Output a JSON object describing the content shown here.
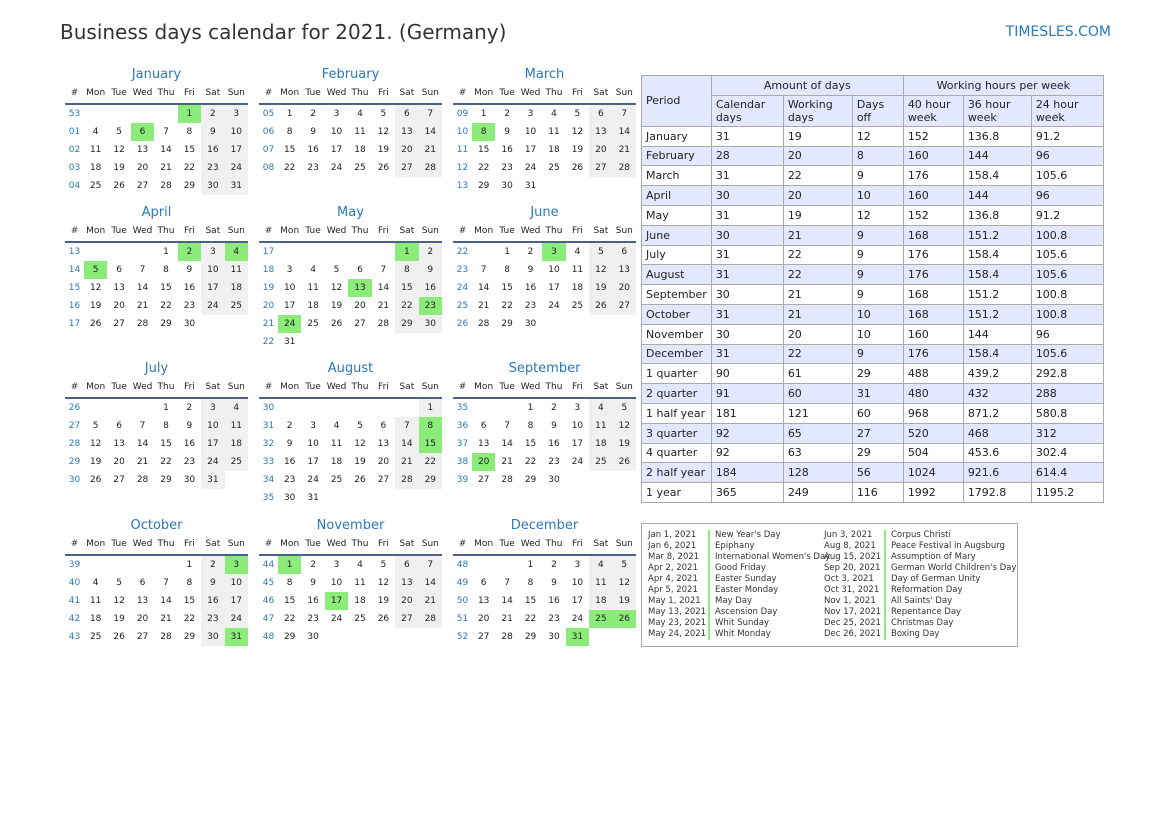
{
  "header": {
    "title": "Business days calendar for 2021. (Germany)",
    "brand": "TIMESLES.COM"
  },
  "week_header": [
    "#",
    "Mon",
    "Tue",
    "Wed",
    "Thu",
    "Fri",
    "Sat",
    "Sun"
  ],
  "colors": {
    "accent": "#2a79bd",
    "holiday": "#8bec7a",
    "weekend": "#f0f0f0",
    "table_header": "#e4e8ff"
  },
  "months": [
    {
      "name": "January",
      "rows": [
        {
          "wk": "53",
          "days": [
            "",
            "",
            "",
            "",
            "1",
            "2",
            "3"
          ]
        },
        {
          "wk": "01",
          "days": [
            "4",
            "5",
            "6",
            "7",
            "8",
            "9",
            "10"
          ]
        },
        {
          "wk": "02",
          "days": [
            "11",
            "12",
            "13",
            "14",
            "15",
            "16",
            "17"
          ]
        },
        {
          "wk": "03",
          "days": [
            "18",
            "19",
            "20",
            "21",
            "22",
            "23",
            "24"
          ]
        },
        {
          "wk": "04",
          "days": [
            "25",
            "26",
            "27",
            "28",
            "29",
            "30",
            "31"
          ]
        }
      ],
      "holidays": [
        "1",
        "6"
      ]
    },
    {
      "name": "February",
      "rows": [
        {
          "wk": "05",
          "days": [
            "1",
            "2",
            "3",
            "4",
            "5",
            "6",
            "7"
          ]
        },
        {
          "wk": "06",
          "days": [
            "8",
            "9",
            "10",
            "11",
            "12",
            "13",
            "14"
          ]
        },
        {
          "wk": "07",
          "days": [
            "15",
            "16",
            "17",
            "18",
            "19",
            "20",
            "21"
          ]
        },
        {
          "wk": "08",
          "days": [
            "22",
            "23",
            "24",
            "25",
            "26",
            "27",
            "28"
          ]
        }
      ],
      "holidays": []
    },
    {
      "name": "March",
      "rows": [
        {
          "wk": "09",
          "days": [
            "1",
            "2",
            "3",
            "4",
            "5",
            "6",
            "7"
          ]
        },
        {
          "wk": "10",
          "days": [
            "8",
            "9",
            "10",
            "11",
            "12",
            "13",
            "14"
          ]
        },
        {
          "wk": "11",
          "days": [
            "15",
            "16",
            "17",
            "18",
            "19",
            "20",
            "21"
          ]
        },
        {
          "wk": "12",
          "days": [
            "22",
            "23",
            "24",
            "25",
            "26",
            "27",
            "28"
          ]
        },
        {
          "wk": "13",
          "days": [
            "29",
            "30",
            "31",
            "",
            "",
            "",
            ""
          ]
        }
      ],
      "holidays": [
        "8"
      ]
    },
    {
      "name": "April",
      "rows": [
        {
          "wk": "13",
          "days": [
            "",
            "",
            "",
            "1",
            "2",
            "3",
            "4"
          ]
        },
        {
          "wk": "14",
          "days": [
            "5",
            "6",
            "7",
            "8",
            "9",
            "10",
            "11"
          ]
        },
        {
          "wk": "15",
          "days": [
            "12",
            "13",
            "14",
            "15",
            "16",
            "17",
            "18"
          ]
        },
        {
          "wk": "16",
          "days": [
            "19",
            "20",
            "21",
            "22",
            "23",
            "24",
            "25"
          ]
        },
        {
          "wk": "17",
          "days": [
            "26",
            "27",
            "28",
            "29",
            "30",
            "",
            ""
          ]
        }
      ],
      "holidays": [
        "2",
        "4",
        "5"
      ]
    },
    {
      "name": "May",
      "rows": [
        {
          "wk": "17",
          "days": [
            "",
            "",
            "",
            "",
            "",
            "1",
            "2"
          ]
        },
        {
          "wk": "18",
          "days": [
            "3",
            "4",
            "5",
            "6",
            "7",
            "8",
            "9"
          ]
        },
        {
          "wk": "19",
          "days": [
            "10",
            "11",
            "12",
            "13",
            "14",
            "15",
            "16"
          ]
        },
        {
          "wk": "20",
          "days": [
            "17",
            "18",
            "19",
            "20",
            "21",
            "22",
            "23"
          ]
        },
        {
          "wk": "21",
          "days": [
            "24",
            "25",
            "26",
            "27",
            "28",
            "29",
            "30"
          ]
        },
        {
          "wk": "22",
          "days": [
            "31",
            "",
            "",
            "",
            "",
            "",
            ""
          ]
        }
      ],
      "holidays": [
        "1",
        "13",
        "23",
        "24"
      ]
    },
    {
      "name": "June",
      "rows": [
        {
          "wk": "22",
          "days": [
            "",
            "1",
            "2",
            "3",
            "4",
            "5",
            "6"
          ]
        },
        {
          "wk": "23",
          "days": [
            "7",
            "8",
            "9",
            "10",
            "11",
            "12",
            "13"
          ]
        },
        {
          "wk": "24",
          "days": [
            "14",
            "15",
            "16",
            "17",
            "18",
            "19",
            "20"
          ]
        },
        {
          "wk": "25",
          "days": [
            "21",
            "22",
            "23",
            "24",
            "25",
            "26",
            "27"
          ]
        },
        {
          "wk": "26",
          "days": [
            "28",
            "29",
            "30",
            "",
            "",
            "",
            ""
          ]
        }
      ],
      "holidays": [
        "3"
      ]
    },
    {
      "name": "July",
      "rows": [
        {
          "wk": "26",
          "days": [
            "",
            "",
            "",
            "1",
            "2",
            "3",
            "4"
          ]
        },
        {
          "wk": "27",
          "days": [
            "5",
            "6",
            "7",
            "8",
            "9",
            "10",
            "11"
          ]
        },
        {
          "wk": "28",
          "days": [
            "12",
            "13",
            "14",
            "15",
            "16",
            "17",
            "18"
          ]
        },
        {
          "wk": "29",
          "days": [
            "19",
            "20",
            "21",
            "22",
            "23",
            "24",
            "25"
          ]
        },
        {
          "wk": "30",
          "days": [
            "26",
            "27",
            "28",
            "29",
            "30",
            "31",
            ""
          ]
        }
      ],
      "holidays": []
    },
    {
      "name": "August",
      "rows": [
        {
          "wk": "30",
          "days": [
            "",
            "",
            "",
            "",
            "",
            "",
            "1"
          ]
        },
        {
          "wk": "31",
          "days": [
            "2",
            "3",
            "4",
            "5",
            "6",
            "7",
            "8"
          ]
        },
        {
          "wk": "32",
          "days": [
            "9",
            "10",
            "11",
            "12",
            "13",
            "14",
            "15"
          ]
        },
        {
          "wk": "33",
          "days": [
            "16",
            "17",
            "18",
            "19",
            "20",
            "21",
            "22"
          ]
        },
        {
          "wk": "34",
          "days": [
            "23",
            "24",
            "25",
            "26",
            "27",
            "28",
            "29"
          ]
        },
        {
          "wk": "35",
          "days": [
            "30",
            "31",
            "",
            "",
            "",
            "",
            ""
          ]
        }
      ],
      "holidays": [
        "8",
        "15"
      ]
    },
    {
      "name": "September",
      "rows": [
        {
          "wk": "35",
          "days": [
            "",
            "",
            "1",
            "2",
            "3",
            "4",
            "5"
          ]
        },
        {
          "wk": "36",
          "days": [
            "6",
            "7",
            "8",
            "9",
            "10",
            "11",
            "12"
          ]
        },
        {
          "wk": "37",
          "days": [
            "13",
            "14",
            "15",
            "16",
            "17",
            "18",
            "19"
          ]
        },
        {
          "wk": "38",
          "days": [
            "20",
            "21",
            "22",
            "23",
            "24",
            "25",
            "26"
          ]
        },
        {
          "wk": "39",
          "days": [
            "27",
            "28",
            "29",
            "30",
            "",
            "",
            ""
          ]
        }
      ],
      "holidays": [
        "20"
      ]
    },
    {
      "name": "October",
      "rows": [
        {
          "wk": "39",
          "days": [
            "",
            "",
            "",
            "",
            "1",
            "2",
            "3"
          ]
        },
        {
          "wk": "40",
          "days": [
            "4",
            "5",
            "6",
            "7",
            "8",
            "9",
            "10"
          ]
        },
        {
          "wk": "41",
          "days": [
            "11",
            "12",
            "13",
            "14",
            "15",
            "16",
            "17"
          ]
        },
        {
          "wk": "42",
          "days": [
            "18",
            "19",
            "20",
            "21",
            "22",
            "23",
            "24"
          ]
        },
        {
          "wk": "43",
          "days": [
            "25",
            "26",
            "27",
            "28",
            "29",
            "30",
            "31"
          ]
        }
      ],
      "holidays": [
        "3",
        "31"
      ]
    },
    {
      "name": "November",
      "rows": [
        {
          "wk": "44",
          "days": [
            "1",
            "2",
            "3",
            "4",
            "5",
            "6",
            "7"
          ]
        },
        {
          "wk": "45",
          "days": [
            "8",
            "9",
            "10",
            "11",
            "12",
            "13",
            "14"
          ]
        },
        {
          "wk": "46",
          "days": [
            "15",
            "16",
            "17",
            "18",
            "19",
            "20",
            "21"
          ]
        },
        {
          "wk": "47",
          "days": [
            "22",
            "23",
            "24",
            "25",
            "26",
            "27",
            "28"
          ]
        },
        {
          "wk": "48",
          "days": [
            "29",
            "30",
            "",
            "",
            "",
            "",
            ""
          ]
        }
      ],
      "holidays": [
        "1",
        "17"
      ]
    },
    {
      "name": "December",
      "rows": [
        {
          "wk": "48",
          "days": [
            "",
            "",
            "1",
            "2",
            "3",
            "4",
            "5"
          ]
        },
        {
          "wk": "49",
          "days": [
            "6",
            "7",
            "8",
            "9",
            "10",
            "11",
            "12"
          ]
        },
        {
          "wk": "50",
          "days": [
            "13",
            "14",
            "15",
            "16",
            "17",
            "18",
            "19"
          ]
        },
        {
          "wk": "51",
          "days": [
            "20",
            "21",
            "22",
            "23",
            "24",
            "25",
            "26"
          ]
        },
        {
          "wk": "52",
          "days": [
            "27",
            "28",
            "29",
            "30",
            "31",
            "",
            ""
          ]
        }
      ],
      "holidays": [
        "25",
        "26",
        "31"
      ]
    }
  ],
  "stats_table": {
    "period_label": "Period",
    "group_days": "Amount of days",
    "group_hours": "Working hours per week",
    "columns": [
      "Calendar days",
      "Working days",
      "Days off",
      "40 hour week",
      "36 hour week",
      "24 hour week"
    ],
    "rows": [
      [
        "January",
        "31",
        "19",
        "12",
        "152",
        "136.8",
        "91.2"
      ],
      [
        "February",
        "28",
        "20",
        "8",
        "160",
        "144",
        "96"
      ],
      [
        "March",
        "31",
        "22",
        "9",
        "176",
        "158.4",
        "105.6"
      ],
      [
        "April",
        "30",
        "20",
        "10",
        "160",
        "144",
        "96"
      ],
      [
        "May",
        "31",
        "19",
        "12",
        "152",
        "136.8",
        "91.2"
      ],
      [
        "June",
        "30",
        "21",
        "9",
        "168",
        "151.2",
        "100.8"
      ],
      [
        "July",
        "31",
        "22",
        "9",
        "176",
        "158.4",
        "105.6"
      ],
      [
        "August",
        "31",
        "22",
        "9",
        "176",
        "158.4",
        "105.6"
      ],
      [
        "September",
        "30",
        "21",
        "9",
        "168",
        "151.2",
        "100.8"
      ],
      [
        "October",
        "31",
        "21",
        "10",
        "168",
        "151.2",
        "100.8"
      ],
      [
        "November",
        "30",
        "20",
        "10",
        "160",
        "144",
        "96"
      ],
      [
        "December",
        "31",
        "22",
        "9",
        "176",
        "158.4",
        "105.6"
      ],
      [
        "1 quarter",
        "90",
        "61",
        "29",
        "488",
        "439.2",
        "292.8"
      ],
      [
        "2 quarter",
        "91",
        "60",
        "31",
        "480",
        "432",
        "288"
      ],
      [
        "1 half year",
        "181",
        "121",
        "60",
        "968",
        "871.2",
        "580.8"
      ],
      [
        "3 quarter",
        "92",
        "65",
        "27",
        "520",
        "468",
        "312"
      ],
      [
        "4 quarter",
        "92",
        "63",
        "29",
        "504",
        "453.6",
        "302.4"
      ],
      [
        "2 half year",
        "184",
        "128",
        "56",
        "1024",
        "921.6",
        "614.4"
      ],
      [
        "1 year",
        "365",
        "249",
        "116",
        "1992",
        "1792.8",
        "1195.2"
      ]
    ]
  },
  "holidays_list": [
    [
      {
        "date": "Jan 1, 2021",
        "name": "New Year's Day"
      },
      {
        "date": "Jan 6, 2021",
        "name": "Epiphany"
      },
      {
        "date": "Mar 8, 2021",
        "name": "International Women's Day"
      },
      {
        "date": "Apr 2, 2021",
        "name": "Good Friday"
      },
      {
        "date": "Apr 4, 2021",
        "name": "Easter Sunday"
      },
      {
        "date": "Apr 5, 2021",
        "name": "Easter Monday"
      },
      {
        "date": "May 1, 2021",
        "name": "May Day"
      },
      {
        "date": "May 13, 2021",
        "name": "Ascension Day"
      },
      {
        "date": "May 23, 2021",
        "name": "Whit Sunday"
      },
      {
        "date": "May 24, 2021",
        "name": "Whit Monday"
      }
    ],
    [
      {
        "date": "Jun 3, 2021",
        "name": "Corpus Christi"
      },
      {
        "date": "Aug 8, 2021",
        "name": "Peace Festival in Augsburg"
      },
      {
        "date": "Aug 15, 2021",
        "name": "Assumption of Mary"
      },
      {
        "date": "Sep 20, 2021",
        "name": "German World Children's Day"
      },
      {
        "date": "Oct 3, 2021",
        "name": "Day of German Unity"
      },
      {
        "date": "Oct 31, 2021",
        "name": "Reformation Day"
      },
      {
        "date": "Nov 1, 2021",
        "name": "All Saints' Day"
      },
      {
        "date": "Nov 17, 2021",
        "name": "Repentance Day"
      },
      {
        "date": "Dec 25, 2021",
        "name": "Christmas Day"
      },
      {
        "date": "Dec 26, 2021",
        "name": "Boxing Day"
      }
    ]
  ]
}
